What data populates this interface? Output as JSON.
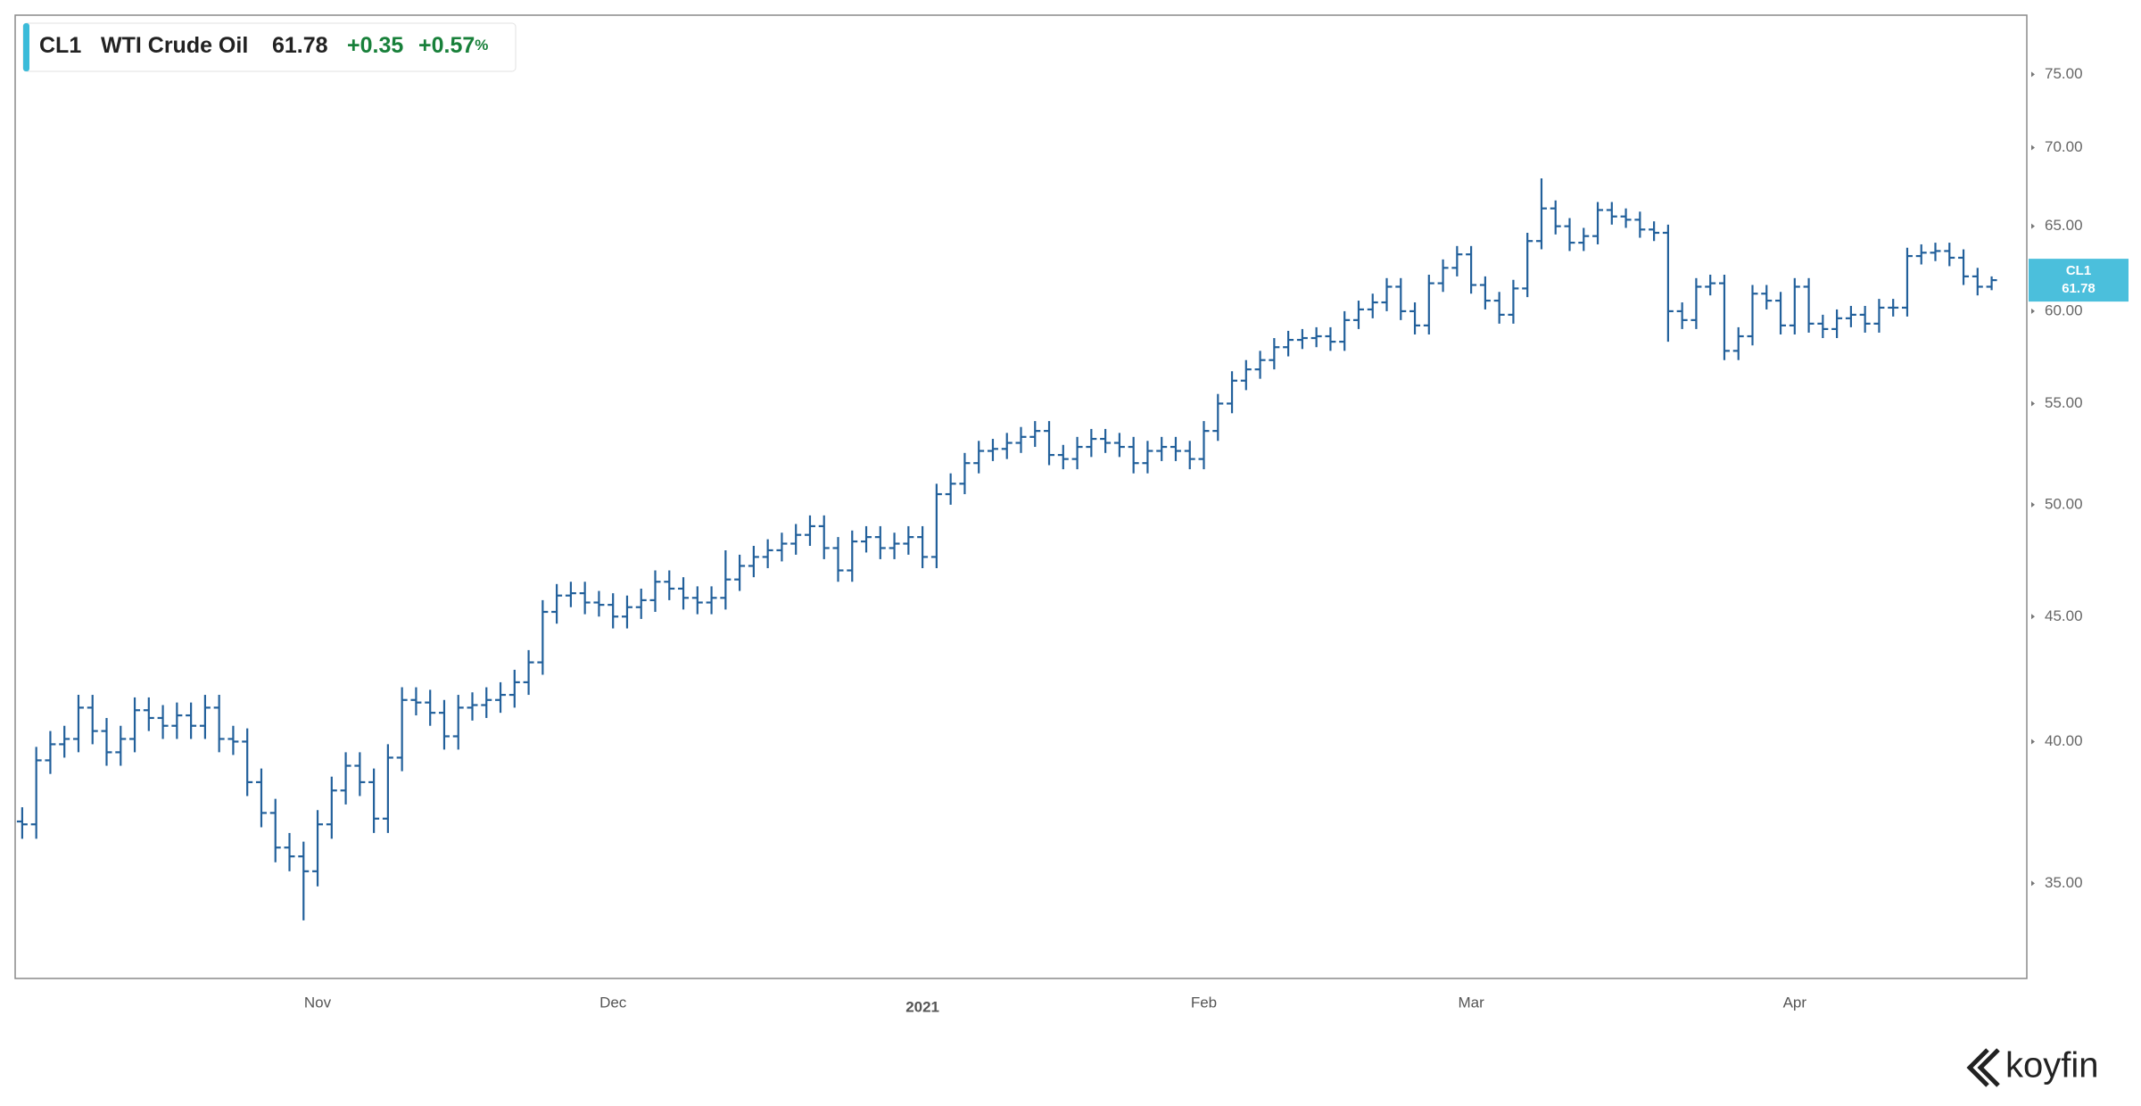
{
  "chart_data": {
    "type": "ohlc",
    "header": {
      "name": "WTI Crude Oil",
      "change": "+0.35",
      "change_pct": "+0.57",
      "pct_unit": "%"
    },
    "watermark": "koyfin",
    "log_y": true,
    "ylim": [
      32.0,
      79.3
    ],
    "yticks": [
      {
        "value": 35,
        "label": "35.00"
      },
      {
        "value": 40,
        "label": "40.00"
      },
      {
        "value": 45,
        "label": "45.00"
      },
      {
        "value": 50,
        "label": "50.00"
      },
      {
        "value": 55,
        "label": "55.00"
      },
      {
        "value": 60,
        "label": "60.00"
      },
      {
        "value": 65,
        "label": "65.00"
      },
      {
        "value": 70,
        "label": "70.00"
      },
      {
        "value": 75,
        "label": "75.00"
      }
    ],
    "categories": [
      null,
      null,
      null,
      null,
      null,
      null,
      null,
      null,
      null,
      null,
      null,
      null,
      null,
      null,
      null,
      null,
      null,
      null,
      null,
      null,
      null,
      "Nov",
      null,
      null,
      null,
      null,
      null,
      null,
      null,
      null,
      null,
      null,
      null,
      null,
      null,
      null,
      null,
      null,
      null,
      null,
      null,
      null,
      "Dec",
      null,
      null,
      null,
      null,
      null,
      null,
      null,
      null,
      null,
      null,
      null,
      null,
      null,
      null,
      null,
      null,
      null,
      null,
      null,
      null,
      null,
      "2021",
      null,
      null,
      null,
      null,
      null,
      null,
      null,
      null,
      null,
      null,
      null,
      null,
      null,
      null,
      null,
      null,
      null,
      null,
      null,
      "Feb",
      null,
      null,
      null,
      null,
      null,
      null,
      null,
      null,
      null,
      null,
      null,
      null,
      null,
      null,
      null,
      null,
      null,
      null,
      "Mar",
      null,
      null,
      null,
      null,
      null,
      null,
      null,
      null,
      null,
      null,
      null,
      null,
      null,
      null,
      null,
      null,
      null,
      null,
      null,
      null,
      null,
      null,
      "Apr",
      null,
      null,
      null,
      null,
      null,
      null,
      null,
      null,
      null,
      null,
      null,
      null,
      null,
      null
    ],
    "series": [
      {
        "name": "CL1",
        "color": "#22609b",
        "open": [
          37.1,
          37.0,
          39.3,
          39.9,
          40.1,
          41.3,
          40.4,
          39.6,
          40.1,
          41.2,
          40.9,
          40.6,
          41.0,
          40.6,
          41.3,
          40.1,
          40.0,
          38.5,
          37.4,
          36.2,
          35.9,
          35.4,
          37.0,
          38.2,
          39.1,
          38.5,
          37.2,
          39.4,
          41.6,
          41.5,
          41.1,
          40.2,
          41.3,
          41.4,
          41.6,
          41.8,
          42.3,
          43.1,
          45.2,
          45.9,
          46.0,
          45.6,
          45.5,
          45.0,
          45.4,
          45.7,
          46.5,
          46.2,
          45.8,
          45.6,
          45.8,
          46.6,
          47.2,
          47.6,
          47.9,
          48.2,
          48.6,
          49.0,
          48.0,
          47.0,
          48.3,
          48.5,
          48.0,
          48.2,
          48.5,
          47.6,
          50.5,
          51.0,
          52.0,
          52.6,
          52.7,
          53.0,
          53.3,
          53.6,
          52.4,
          52.2,
          52.8,
          53.2,
          53.0,
          52.8,
          52.0,
          52.6,
          52.8,
          52.6,
          52.2,
          53.6,
          55.0,
          56.2,
          56.8,
          57.3,
          58.0,
          58.4,
          58.5,
          58.6,
          58.3,
          59.5,
          60.1,
          60.5,
          61.4,
          60.0,
          59.2,
          61.6,
          62.5,
          63.3,
          61.5,
          60.6,
          59.8,
          61.3,
          64.1,
          66.1,
          65.0,
          64.0,
          64.4,
          66.0,
          65.6,
          65.4,
          64.8,
          64.6,
          60.0,
          59.5,
          61.4,
          61.6,
          57.8,
          58.6,
          61.0,
          60.6,
          59.2,
          61.4,
          59.3,
          59.0,
          59.6,
          59.8,
          59.3,
          60.2,
          60.2,
          63.2,
          63.4,
          63.5,
          63.1,
          62.0,
          61.4
        ],
        "high": [
          37.6,
          39.8,
          40.4,
          40.6,
          41.8,
          41.8,
          40.9,
          40.6,
          41.7,
          41.7,
          41.4,
          41.5,
          41.5,
          41.8,
          41.8,
          40.6,
          40.5,
          39.0,
          37.9,
          36.7,
          36.4,
          37.5,
          38.7,
          39.6,
          39.6,
          39.0,
          39.9,
          42.1,
          42.1,
          42.0,
          41.6,
          41.8,
          41.9,
          42.1,
          42.3,
          42.8,
          43.6,
          45.7,
          46.4,
          46.5,
          46.5,
          46.1,
          46.0,
          45.9,
          46.2,
          47.0,
          47.0,
          46.7,
          46.3,
          46.3,
          47.9,
          47.7,
          48.1,
          48.4,
          48.7,
          49.1,
          49.5,
          49.5,
          48.5,
          48.8,
          49.0,
          49.0,
          48.7,
          49.0,
          49.0,
          51.0,
          51.5,
          52.5,
          53.1,
          53.2,
          53.5,
          53.8,
          54.1,
          54.1,
          52.9,
          53.3,
          53.7,
          53.7,
          53.5,
          53.3,
          53.1,
          53.3,
          53.3,
          53.1,
          54.1,
          55.5,
          56.7,
          57.3,
          57.8,
          58.5,
          58.9,
          59.0,
          59.1,
          59.1,
          60.0,
          60.6,
          61.0,
          61.9,
          61.9,
          60.5,
          62.1,
          63.0,
          63.8,
          63.8,
          62.0,
          61.1,
          61.8,
          64.6,
          68.0,
          66.6,
          65.5,
          64.9,
          66.5,
          66.5,
          66.1,
          65.9,
          65.3,
          65.1,
          60.5,
          61.9,
          62.1,
          62.1,
          59.1,
          61.5,
          61.5,
          61.1,
          61.9,
          61.9,
          59.8,
          60.1,
          60.3,
          60.3,
          60.7,
          60.7,
          63.7,
          63.9,
          64.0,
          64.0,
          63.6,
          62.5,
          62.0
        ],
        "low": [
          36.5,
          36.5,
          38.8,
          39.4,
          39.6,
          39.9,
          39.1,
          39.1,
          39.6,
          40.4,
          40.1,
          40.1,
          40.1,
          40.1,
          39.6,
          39.5,
          38.0,
          36.9,
          35.7,
          35.4,
          33.8,
          34.9,
          36.5,
          37.7,
          38.0,
          36.7,
          36.7,
          38.9,
          41.0,
          40.6,
          39.7,
          39.7,
          40.8,
          40.9,
          41.1,
          41.3,
          41.8,
          42.6,
          44.7,
          45.4,
          45.1,
          45.0,
          44.5,
          44.5,
          44.9,
          45.2,
          45.7,
          45.3,
          45.1,
          45.1,
          45.3,
          46.1,
          46.7,
          47.1,
          47.4,
          47.7,
          48.1,
          47.5,
          46.5,
          46.5,
          47.8,
          47.5,
          47.5,
          47.7,
          47.1,
          47.1,
          50.0,
          50.5,
          51.5,
          52.1,
          52.2,
          52.5,
          52.8,
          51.9,
          51.7,
          51.7,
          52.3,
          52.5,
          52.3,
          51.5,
          51.5,
          52.1,
          52.1,
          51.7,
          51.7,
          53.1,
          54.5,
          55.7,
          56.3,
          56.8,
          57.5,
          57.9,
          58.0,
          57.8,
          57.8,
          59.0,
          59.6,
          60.0,
          59.5,
          58.7,
          58.7,
          61.1,
          62.0,
          61.0,
          60.1,
          59.3,
          59.3,
          60.8,
          63.6,
          64.5,
          63.5,
          63.5,
          63.9,
          65.1,
          64.9,
          64.3,
          64.1,
          58.3,
          59.0,
          59.0,
          60.9,
          57.3,
          57.3,
          58.1,
          60.1,
          58.7,
          58.7,
          58.8,
          58.5,
          58.5,
          59.1,
          58.8,
          58.8,
          59.7,
          59.7,
          62.7,
          62.9,
          62.6,
          61.5,
          60.9,
          61.2
        ],
        "close": [
          37.0,
          39.3,
          39.9,
          40.1,
          41.3,
          40.4,
          39.6,
          40.1,
          41.2,
          40.9,
          40.6,
          41.0,
          40.6,
          41.3,
          40.1,
          40.0,
          38.5,
          37.4,
          36.2,
          35.9,
          35.4,
          37.0,
          38.2,
          39.1,
          38.5,
          37.2,
          39.4,
          41.6,
          41.5,
          41.1,
          40.2,
          41.3,
          41.4,
          41.6,
          41.8,
          42.3,
          43.1,
          45.2,
          45.9,
          46.0,
          45.6,
          45.5,
          45.0,
          45.4,
          45.7,
          46.5,
          46.2,
          45.8,
          45.6,
          45.8,
          46.6,
          47.2,
          47.6,
          47.9,
          48.2,
          48.6,
          49.0,
          48.0,
          47.0,
          48.3,
          48.5,
          48.0,
          48.2,
          48.5,
          47.6,
          50.5,
          51.0,
          52.0,
          52.6,
          52.7,
          53.0,
          53.3,
          53.6,
          52.4,
          52.2,
          52.8,
          53.2,
          53.0,
          52.8,
          52.0,
          52.6,
          52.8,
          52.6,
          52.2,
          53.6,
          55.0,
          56.2,
          56.8,
          57.3,
          58.0,
          58.4,
          58.5,
          58.6,
          58.3,
          59.5,
          60.1,
          60.5,
          61.4,
          60.0,
          59.2,
          61.6,
          62.5,
          63.3,
          61.5,
          60.6,
          59.8,
          61.3,
          64.1,
          66.1,
          65.0,
          64.0,
          64.4,
          66.0,
          65.6,
          65.4,
          64.8,
          64.6,
          60.0,
          59.5,
          61.4,
          61.6,
          57.8,
          58.6,
          61.0,
          60.6,
          59.2,
          61.4,
          59.3,
          59.0,
          59.6,
          59.8,
          59.3,
          60.2,
          60.2,
          63.2,
          63.4,
          63.5,
          63.1,
          62.0,
          61.4,
          61.78
        ]
      }
    ],
    "tag_color": "#4bbfdc",
    "up_color": "#18803a"
  }
}
